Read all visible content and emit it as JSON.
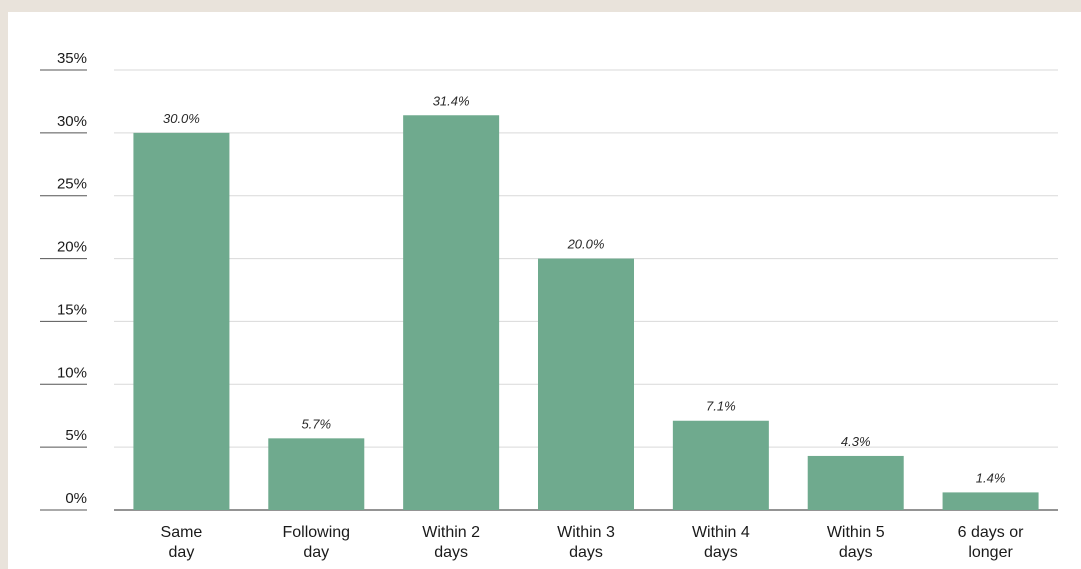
{
  "chart_data": {
    "type": "bar",
    "categories": [
      [
        "Same",
        "day"
      ],
      [
        "Following",
        "day"
      ],
      [
        "Within 2",
        "days"
      ],
      [
        "Within 3",
        "days"
      ],
      [
        "Within 4",
        "days"
      ],
      [
        "Within 5",
        "days"
      ],
      [
        "6 days or",
        "longer"
      ]
    ],
    "values": [
      30.0,
      5.7,
      31.4,
      20.0,
      7.1,
      4.3,
      1.4
    ],
    "value_labels": [
      "30.0%",
      "5.7%",
      "31.4%",
      "20.0%",
      "7.1%",
      "4.3%",
      "1.4%"
    ],
    "y_ticks": [
      "0%",
      "5%",
      "10%",
      "15%",
      "20%",
      "25%",
      "30%",
      "35%"
    ],
    "ylim": [
      0,
      35
    ],
    "grid": true,
    "bar_color": "#6faa8e",
    "grid_color": "#d9d9d9",
    "axis_color": "#555555"
  }
}
